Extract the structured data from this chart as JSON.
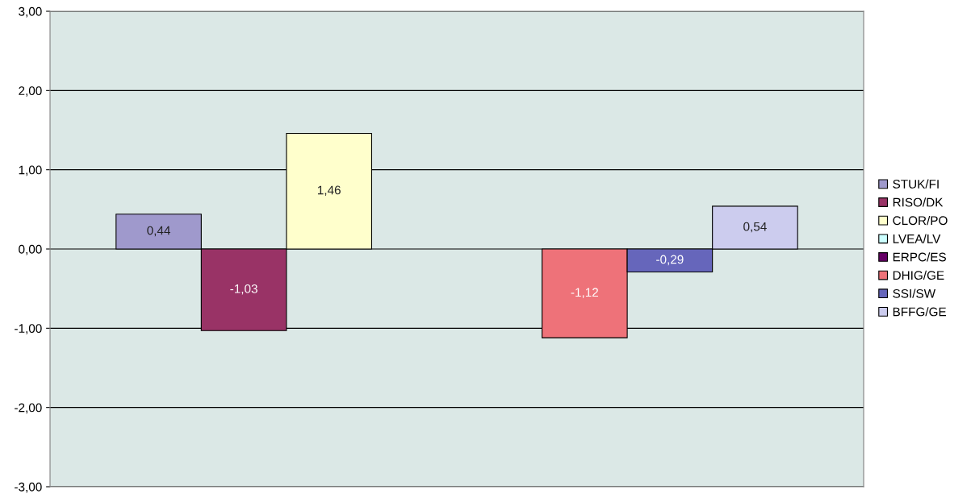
{
  "chart_data": {
    "type": "bar",
    "categories": [
      null
    ],
    "series": [
      {
        "name": "STUK/FI",
        "color": "#9f99cc",
        "values": [
          0.44
        ],
        "value_labels": [
          "0,44"
        ]
      },
      {
        "name": "RISO/DK",
        "color": "#993366",
        "values": [
          -1.03
        ],
        "value_labels": [
          "-1,03"
        ]
      },
      {
        "name": "CLOR/PO",
        "color": "#ffffcc",
        "values": [
          1.46
        ],
        "value_labels": [
          "1,46"
        ]
      },
      {
        "name": "LVEA/LV",
        "color": "#ccffff",
        "values": [
          null
        ],
        "value_labels": [
          null
        ]
      },
      {
        "name": "ERPC/ES",
        "color": "#660066",
        "values": [
          null
        ],
        "value_labels": [
          null
        ]
      },
      {
        "name": "DHIG/GE",
        "color": "#ee7279",
        "values": [
          -1.12
        ],
        "value_labels": [
          "-1,12"
        ]
      },
      {
        "name": "SSI/SW",
        "color": "#6666bb",
        "values": [
          -0.29
        ],
        "value_labels": [
          "-0,29"
        ]
      },
      {
        "name": "BFFG/GE",
        "color": "#ccccee",
        "values": [
          0.54
        ],
        "value_labels": [
          "0,54"
        ]
      }
    ],
    "ylim": [
      -3,
      3
    ],
    "yticks": [
      {
        "value": -3,
        "label": "-3,00"
      },
      {
        "value": -2,
        "label": "-2,00"
      },
      {
        "value": -1,
        "label": "-1,00"
      },
      {
        "value": 0,
        "label": "0,00"
      },
      {
        "value": 1,
        "label": "1,00"
      },
      {
        "value": 2,
        "label": "2,00"
      },
      {
        "value": 3,
        "label": "3,00"
      }
    ],
    "grid": "y",
    "legend": "right"
  }
}
